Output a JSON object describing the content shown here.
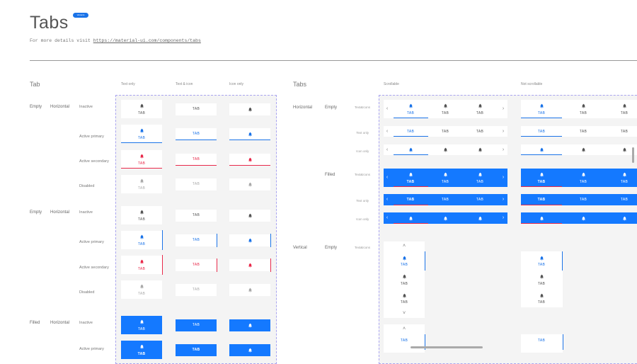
{
  "header": {
    "title": "Tabs",
    "badge": "Variants",
    "subtitle_prefix": "For more details visit ",
    "subtitle_link": "https://material-ui.com/components/tabs"
  },
  "colors": {
    "primary": "#1a73e8",
    "secondary": "#e8294a",
    "filled_bg": "#1479ff",
    "inactive": "#555555",
    "disabled": "#aaaaaa"
  },
  "tab_label": "TAB",
  "icons": {
    "tab": "bell-icon",
    "prev": "chevron-left-icon",
    "next": "chevron-right-icon",
    "up": "chevron-up-icon",
    "down": "chevron-down-icon"
  },
  "tab_section": {
    "title": "Tab",
    "columns": [
      "Text only",
      "Text & icon",
      "Icon only"
    ],
    "rows": [
      {
        "group": "Empty",
        "orientation": "Horizontal",
        "state": "Inactive"
      },
      {
        "group": "",
        "orientation": "",
        "state": "Active primary"
      },
      {
        "group": "",
        "orientation": "",
        "state": "Active secondary"
      },
      {
        "group": "",
        "orientation": "",
        "state": "Disabled"
      },
      {
        "group": "Empty",
        "orientation": "Horizontal",
        "state": "Inactive"
      },
      {
        "group": "",
        "orientation": "",
        "state": "Active primary"
      },
      {
        "group": "",
        "orientation": "",
        "state": "Active secondary"
      },
      {
        "group": "",
        "orientation": "",
        "state": "Disabled"
      },
      {
        "group": "Filled",
        "orientation": "Horizontal",
        "state": "Inactive"
      },
      {
        "group": "",
        "orientation": "",
        "state": "Active primary"
      }
    ]
  },
  "tabs_section": {
    "title": "Tabs",
    "columns": [
      "Scrollable",
      "Not scrollable"
    ],
    "rows": [
      {
        "orientation": "Horizontal",
        "fill": "Empty",
        "content": "Text&Icons"
      },
      {
        "orientation": "",
        "fill": "",
        "content": "Text only"
      },
      {
        "orientation": "",
        "fill": "",
        "content": "Icon only"
      },
      {
        "orientation": "",
        "fill": "Filled",
        "content": "Text&Icons"
      },
      {
        "orientation": "",
        "fill": "",
        "content": "Text only"
      },
      {
        "orientation": "",
        "fill": "",
        "content": "Icon only"
      },
      {
        "orientation": "Vertical",
        "fill": "Empty",
        "content": "Text&Icons"
      }
    ]
  }
}
